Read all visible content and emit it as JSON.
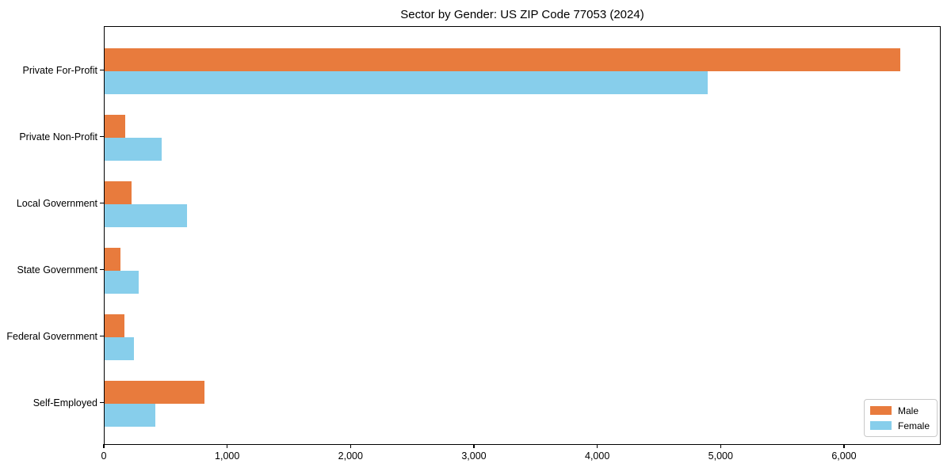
{
  "chart_data": {
    "type": "bar",
    "orientation": "horizontal",
    "title": "Sector by Gender: US ZIP Code 77053 (2024)",
    "categories": [
      "Private For-Profit",
      "Private Non-Profit",
      "Local Government",
      "State Government",
      "Federal Government",
      "Self-Employed"
    ],
    "series": [
      {
        "name": "Male",
        "color": "#e87b3d",
        "values": [
          6450,
          167,
          218,
          128,
          160,
          810
        ]
      },
      {
        "name": "Female",
        "color": "#87ceeb",
        "values": [
          4890,
          463,
          668,
          276,
          238,
          411
        ]
      }
    ],
    "xlabel": "",
    "ylabel": "",
    "xlim": [
      0,
      6784
    ],
    "xticks": [
      0,
      1000,
      2000,
      3000,
      4000,
      5000,
      6000
    ],
    "xtick_labels": [
      "0",
      "1,000",
      "2,000",
      "3,000",
      "4,000",
      "5,000",
      "6,000"
    ],
    "grid": false,
    "legend": {
      "position": "lower right",
      "entries": [
        "Male",
        "Female"
      ]
    }
  },
  "colors": {
    "male": "#e87b3d",
    "female": "#87ceeb",
    "spine": "#000000",
    "legend_border": "#c9c9c9",
    "background": "#ffffff",
    "text": "#000000"
  }
}
